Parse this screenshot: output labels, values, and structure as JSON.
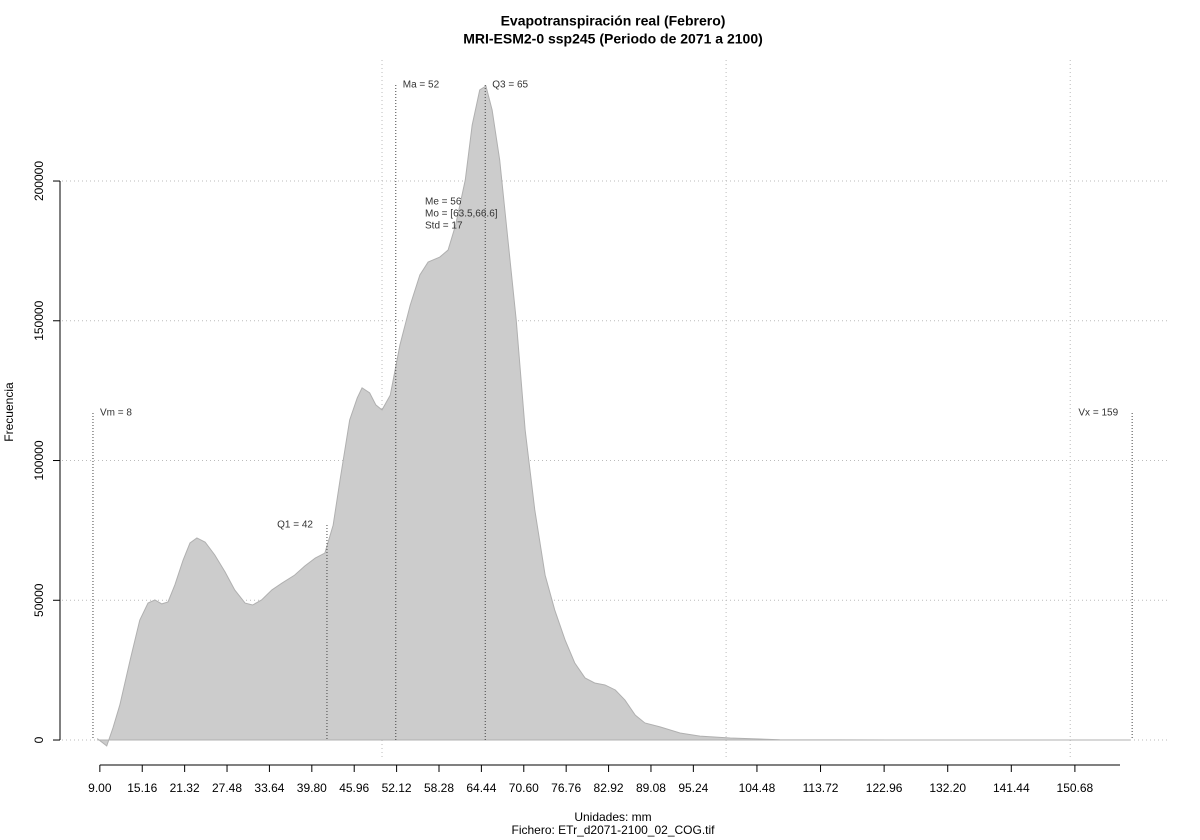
{
  "chart_data": {
    "type": "area",
    "title": "Evapotranspiración real (Febrero)",
    "subtitle": "MRI-ESM2-0 ssp245 (Periodo de 2071 a 2100)",
    "ylabel": "Frecuencia",
    "xlabel": "Unidades: mm",
    "caption": "Fichero: ETr_d2071-2100_02_COG.tif",
    "color": "#cccccc",
    "x": [
      8.7,
      10.0,
      10.9,
      11.9,
      13.4,
      14.8,
      16.0,
      17.0,
      18.0,
      18.9,
      19.9,
      21.1,
      22.1,
      23.1,
      24.3,
      25.7,
      27.2,
      28.6,
      30.1,
      31.2,
      32.5,
      34.0,
      35.5,
      37.3,
      38.8,
      40.3,
      41.7,
      42.9,
      43.9,
      45.3,
      46.4,
      47.1,
      48.2,
      49.1,
      50.0,
      51.2,
      52.6,
      54.1,
      55.5,
      56.7,
      58.4,
      59.6,
      60.7,
      62.1,
      63.1,
      64.2,
      65.1,
      66.0,
      67.1,
      68.3,
      69.5,
      70.8,
      72.2,
      73.7,
      75.1,
      76.6,
      78.0,
      79.5,
      80.9,
      82.4,
      83.9,
      85.3,
      86.8,
      88.2,
      90.4,
      93.3,
      96.2,
      100.6,
      107.8,
      125.3,
      158.7
    ],
    "values": [
      360,
      -2100,
      4300,
      12500,
      28600,
      42900,
      49000,
      50100,
      48700,
      49400,
      55500,
      64400,
      70500,
      72300,
      70800,
      66200,
      60100,
      53700,
      49000,
      48300,
      50100,
      53700,
      56200,
      59000,
      62300,
      65100,
      66900,
      76900,
      93000,
      114500,
      122400,
      126000,
      124200,
      119900,
      118100,
      123400,
      141300,
      155600,
      166400,
      171000,
      172800,
      175300,
      184300,
      200400,
      220000,
      232600,
      234000,
      225400,
      207500,
      178900,
      150300,
      110900,
      82300,
      59000,
      46500,
      35800,
      27600,
      22200,
      20400,
      19700,
      17900,
      14300,
      8900,
      6100,
      4700,
      2500,
      1400,
      700,
      100,
      0,
      0
    ],
    "xlim": [
      3.5,
      164.5
    ],
    "ylim": [
      -7150,
      243300
    ],
    "xticks": [
      {
        "value": 9,
        "label": "9.00"
      },
      15.16,
      21.32,
      27.48,
      33.64,
      {
        "value": 39.8,
        "label": "39.80"
      },
      45.96,
      52.12,
      58.28,
      64.44,
      {
        "value": 70.6,
        "label": "70.60"
      },
      76.76,
      82.92,
      89.08,
      95.24,
      104.48,
      113.72,
      122.96,
      {
        "value": 132.2,
        "label": "132.20"
      },
      141.44,
      150.68
    ],
    "yticks": [
      0,
      50000,
      100000,
      150000,
      200000
    ],
    "xgrid": [
      50,
      100,
      150
    ],
    "grid": true,
    "annotations": [
      {
        "label": "Vm = 8",
        "x": 8
      },
      {
        "label": "Q1 = 42",
        "x": 42
      },
      {
        "label": "Ma = 52",
        "x": 52
      },
      {
        "label": "Q3 = 65",
        "x": 65
      },
      {
        "label": "Vx = 159",
        "x": 159
      }
    ],
    "stats": [
      "Me = 56",
      "Mo = [63.5,66.6]",
      "Std = 17"
    ]
  }
}
